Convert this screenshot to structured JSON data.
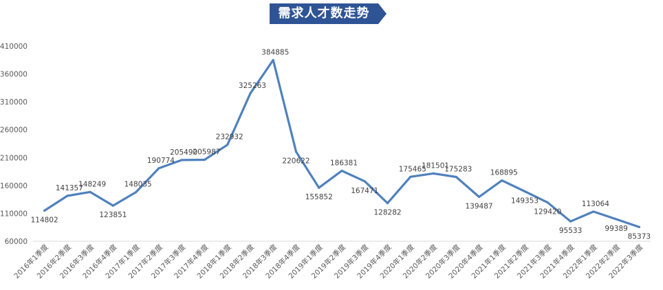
{
  "chart_data": {
    "type": "line",
    "title": "需求人才数走势",
    "categories": [
      "2016年1季度",
      "2016年2季度",
      "2016年3季度",
      "2016年4季度",
      "2017年1季度",
      "2017年2季度",
      "2017年3季度",
      "2017年4季度",
      "2018年1季度",
      "2018年2季度",
      "2018年3季度",
      "2018年4季度",
      "2019年1季度",
      "2019年2季度",
      "2019年3季度",
      "2019年4季度",
      "2020年1季度",
      "2020年2季度",
      "2020年3季度",
      "2020年4季度",
      "2021年1季度",
      "2021年2季度",
      "2021年3季度",
      "2021年4季度",
      "2022年1季度",
      "2022年2季度",
      "2022年3季度"
    ],
    "values": [
      114802,
      141357,
      148249,
      123851,
      148035,
      190774,
      205490,
      205987,
      232932,
      325263,
      384885,
      220622,
      155852,
      186381,
      167471,
      128282,
      175465,
      181501,
      175283,
      139487,
      168895,
      149353,
      129420,
      95533,
      113064,
      99389,
      85373
    ],
    "y_ticks": [
      "60000",
      "110000",
      "160000",
      "210000",
      "260000",
      "310000",
      "360000",
      "410000"
    ],
    "ylim": [
      60000,
      410000
    ],
    "grid": false,
    "line_color": "#4f81bd",
    "title_bg_color": "#2e5496"
  }
}
